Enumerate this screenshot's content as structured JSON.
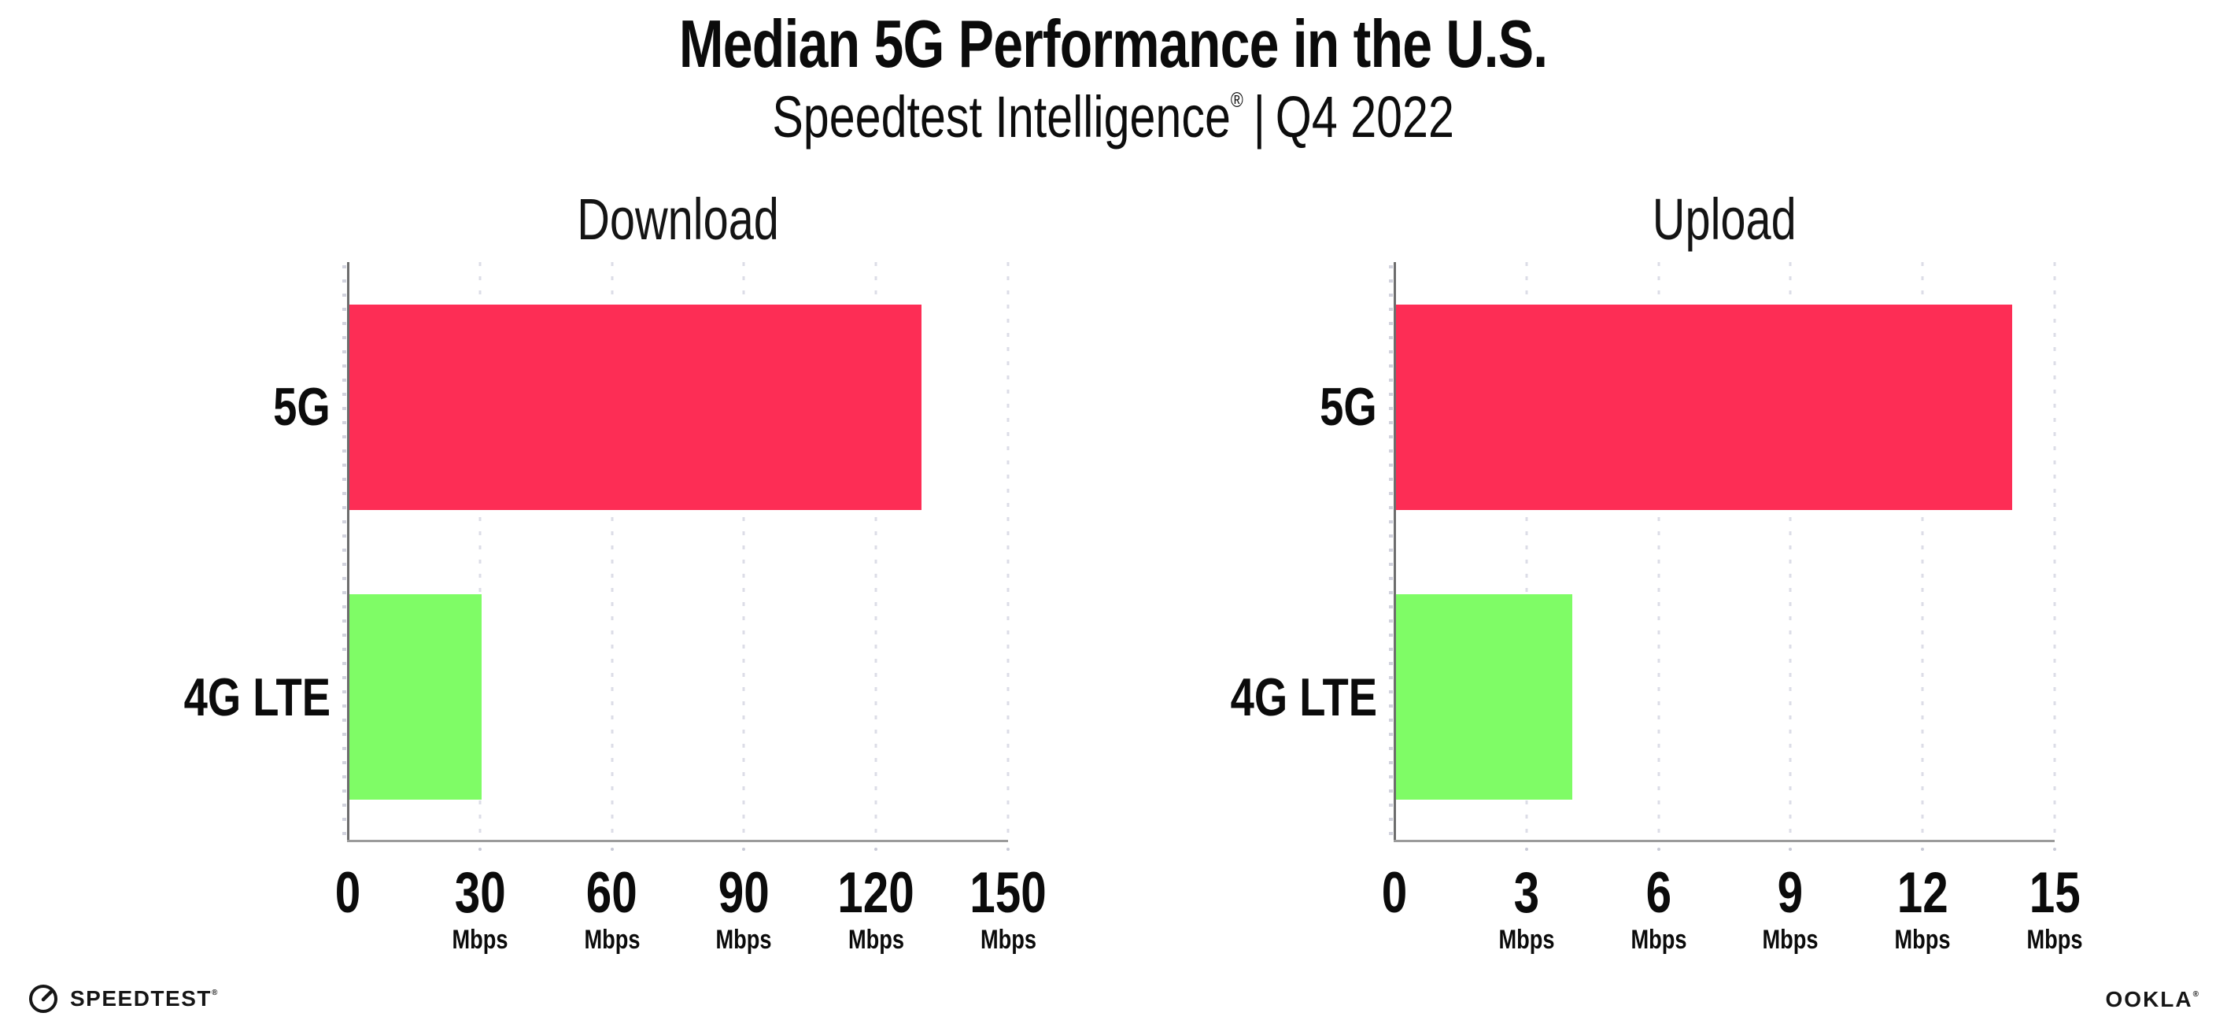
{
  "title": "Median 5G Performance in the U.S.",
  "subtitle": {
    "brand": "Speedtest Intelligence",
    "registered": "®",
    "separator": "|",
    "period": "Q4 2022"
  },
  "footer": {
    "speedtest": "SPEEDTEST",
    "speedtest_mark": "®",
    "gauge_icon": "speedtest-gauge",
    "ookla": "OOKLA",
    "ookla_mark": "®"
  },
  "colors": {
    "bar_5g": "#FD2D55",
    "bar_4g_lte": "#7FFC66",
    "gridline": "#DCDDE7",
    "x_axis": "#9B9B9B",
    "y_axis": "#6D6D6D",
    "text": "#0B0B0B"
  },
  "chart_data": [
    {
      "type": "bar",
      "orientation": "horizontal",
      "title": "Download",
      "categories": [
        "5G",
        "4G LTE"
      ],
      "values": [
        130,
        30
      ],
      "unit": "Mbps",
      "xlim": [
        0,
        150
      ],
      "xticks": [
        0,
        30,
        60,
        90,
        120,
        150
      ],
      "bar_colors": [
        "#FD2D55",
        "#7FFC66"
      ],
      "grid": "dotted-vertical",
      "legend": "none"
    },
    {
      "type": "bar",
      "orientation": "horizontal",
      "title": "Upload",
      "categories": [
        "5G",
        "4G LTE"
      ],
      "values": [
        14,
        4
      ],
      "unit": "Mbps",
      "xlim": [
        0,
        15
      ],
      "xticks": [
        0,
        3,
        6,
        9,
        12,
        15
      ],
      "bar_colors": [
        "#FD2D55",
        "#7FFC66"
      ],
      "grid": "dotted-vertical",
      "legend": "none"
    }
  ]
}
